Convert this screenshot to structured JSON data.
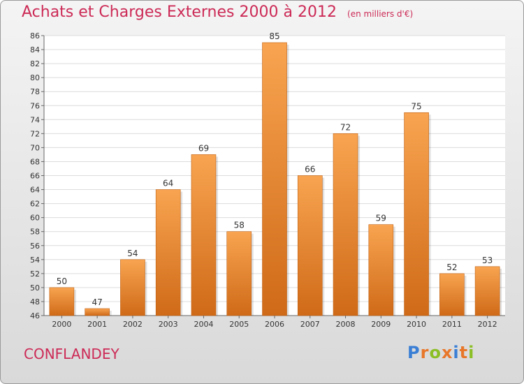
{
  "title": "Achats et Charges Externes 2000 à 2012",
  "unit_note": "(en milliers d'€)",
  "commune": "CONFLANDEY",
  "logo": {
    "text": "Proxiti",
    "letter_colors": [
      "#3a7fd5",
      "#e8772a",
      "#8cbf26",
      "#e8772a",
      "#3a7fd5",
      "#e8772a",
      "#8cbf26"
    ]
  },
  "colors": {
    "title": "#cc2a56",
    "bar_top": "#f8a450",
    "bar_bottom": "#cf6a18"
  },
  "chart_data": {
    "type": "bar",
    "categories": [
      "2000",
      "2001",
      "2002",
      "2003",
      "2004",
      "2005",
      "2006",
      "2007",
      "2008",
      "2009",
      "2010",
      "2011",
      "2012"
    ],
    "values": [
      50,
      47,
      54,
      64,
      69,
      58,
      85,
      66,
      72,
      59,
      75,
      52,
      53
    ],
    "ylim": [
      46,
      86
    ],
    "yticks": [
      46,
      48,
      50,
      52,
      54,
      56,
      58,
      60,
      62,
      64,
      66,
      68,
      70,
      72,
      74,
      76,
      78,
      80,
      82,
      84,
      86
    ],
    "grid": true,
    "xlabel": "",
    "ylabel": ""
  }
}
